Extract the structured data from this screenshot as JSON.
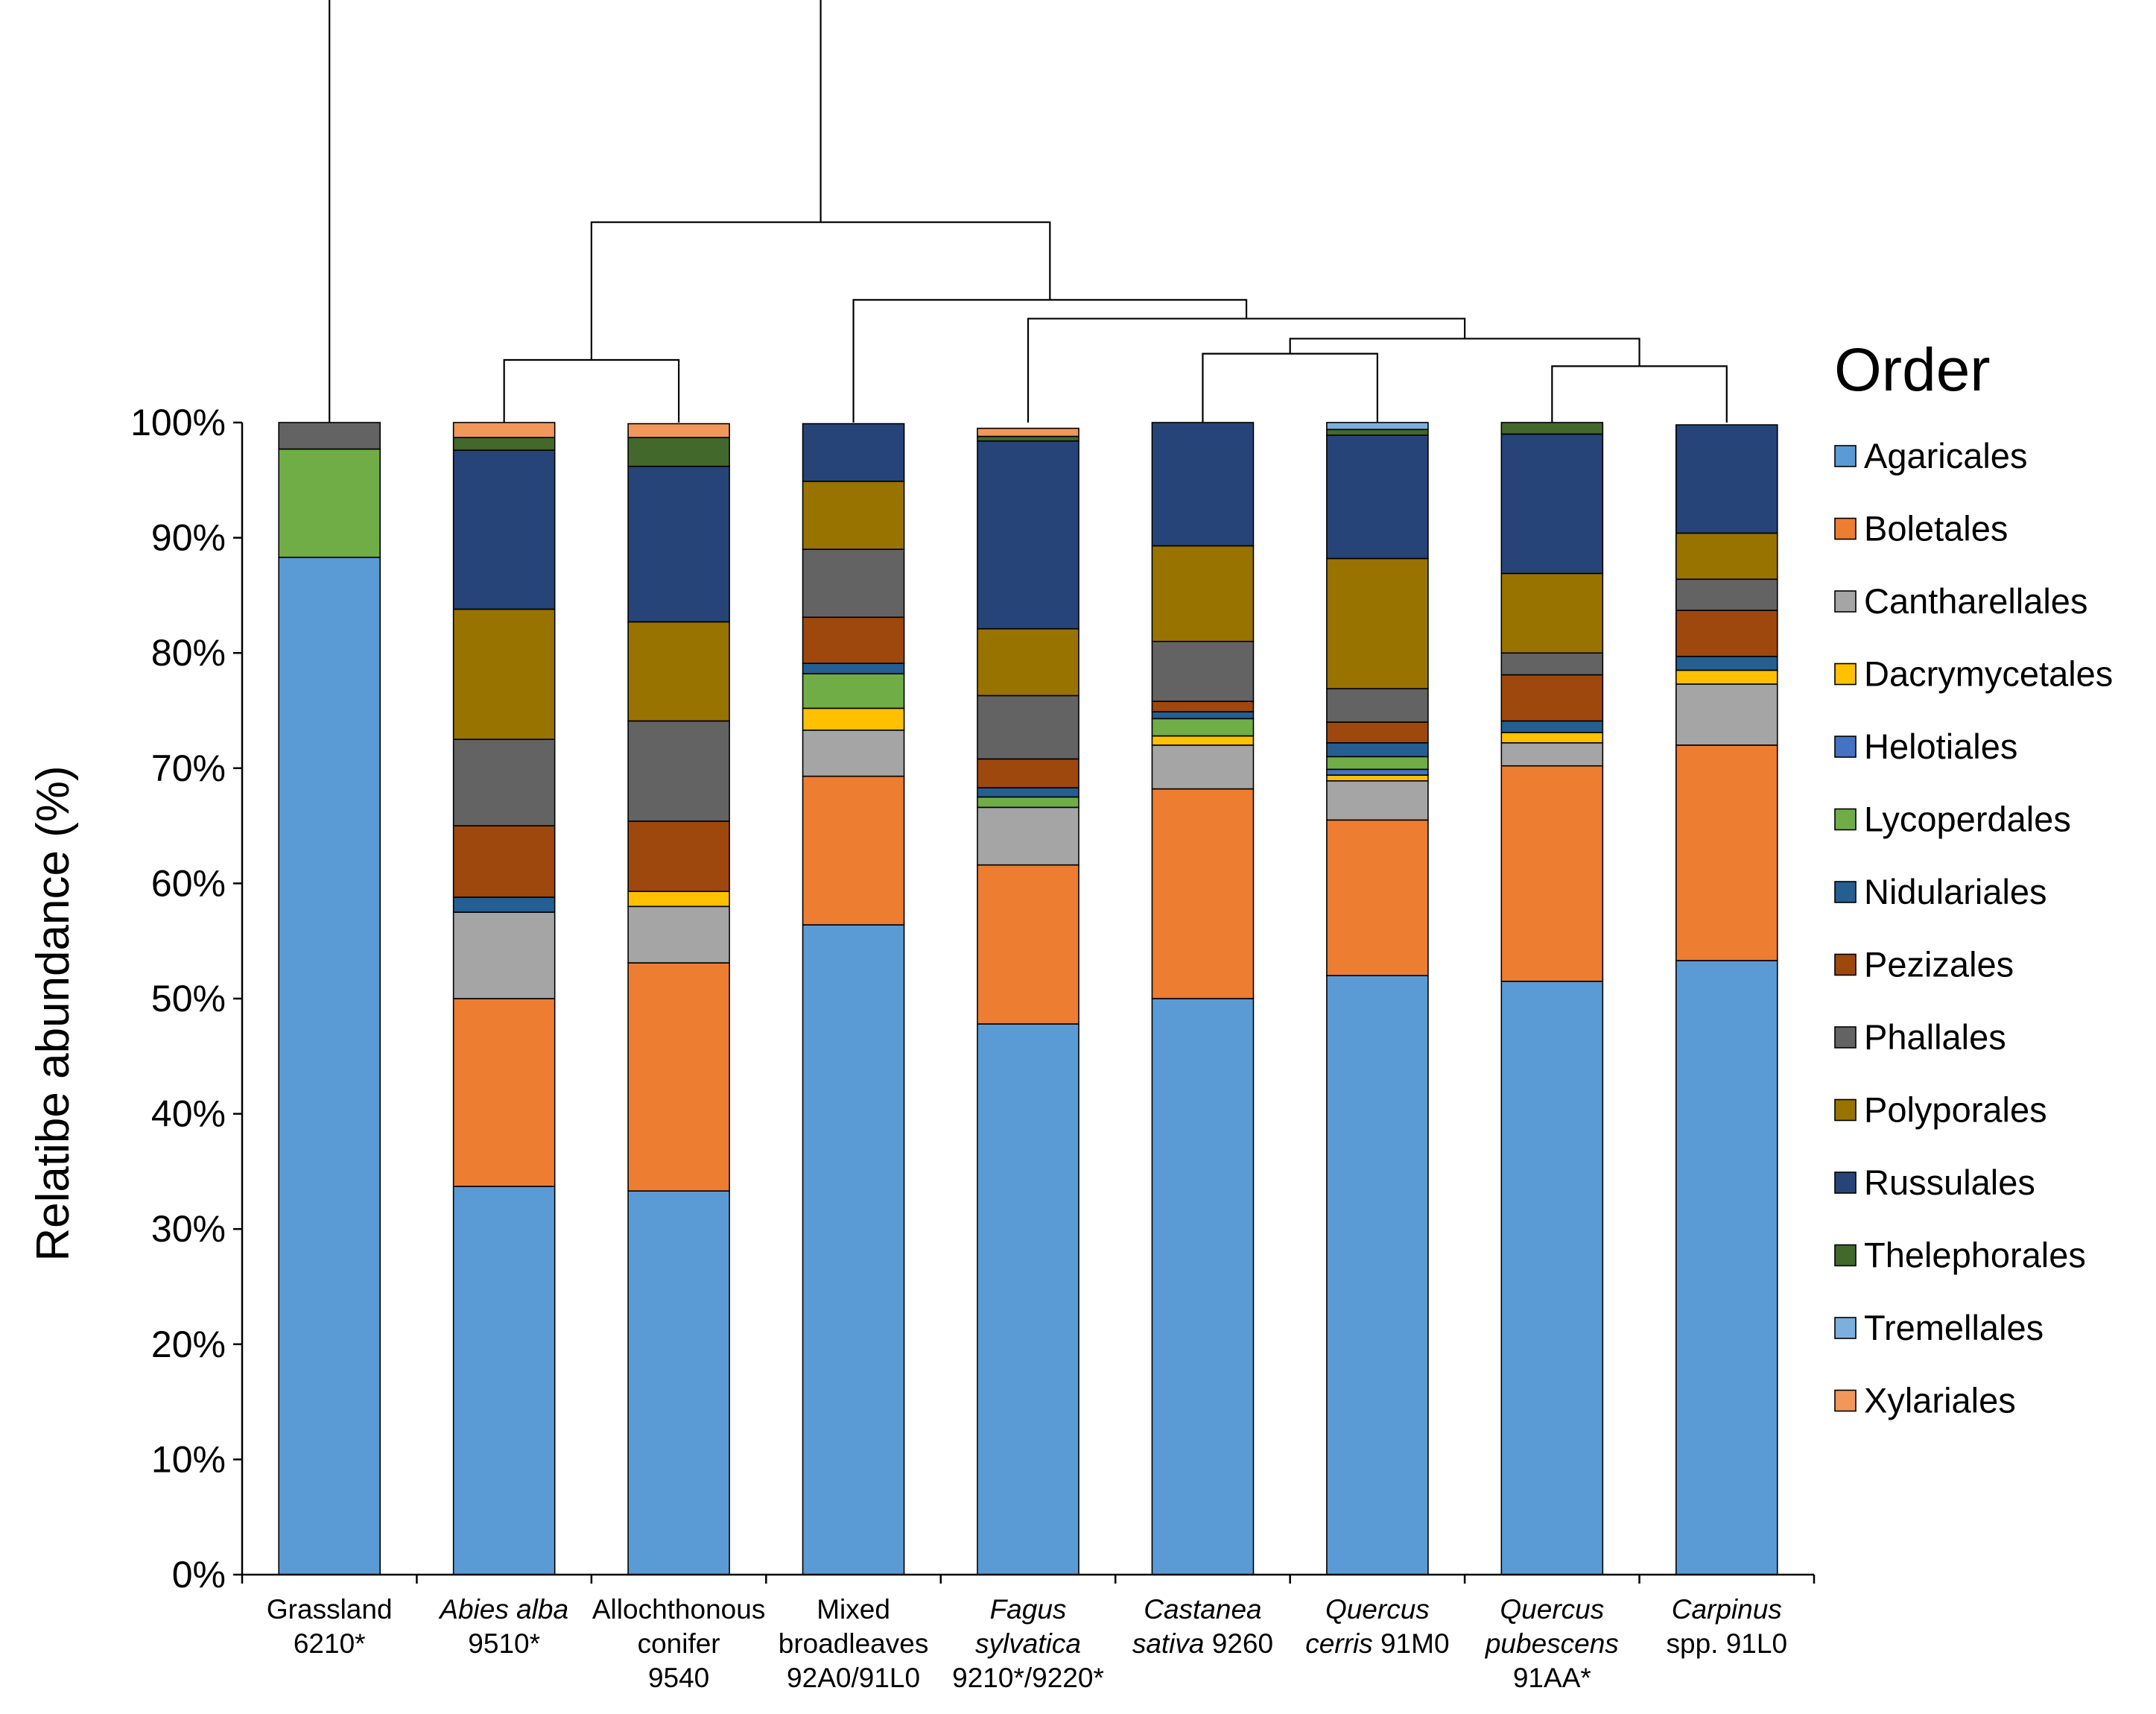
{
  "chart_data": {
    "type": "bar",
    "stacked": true,
    "title": "",
    "xlabel": "",
    "ylabel": "Relatibe abundance (%)",
    "ylim": [
      0,
      100
    ],
    "y_ticks": [
      "0%",
      "10%",
      "20%",
      "30%",
      "40%",
      "50%",
      "60%",
      "70%",
      "80%",
      "90%",
      "100%"
    ],
    "legend_title": "Order",
    "legend_position": "right",
    "categories": [
      {
        "lines": [
          [
            {
              "t": "Grassland",
              "i": false
            }
          ],
          [
            {
              "t": "6210*",
              "i": false
            }
          ]
        ]
      },
      {
        "lines": [
          [
            {
              "t": "Abies alba",
              "i": true
            }
          ],
          [
            {
              "t": "9510*",
              "i": false
            }
          ]
        ]
      },
      {
        "lines": [
          [
            {
              "t": "Allochthonous",
              "i": false
            }
          ],
          [
            {
              "t": "conifer",
              "i": false
            }
          ],
          [
            {
              "t": "9540",
              "i": false
            }
          ]
        ]
      },
      {
        "lines": [
          [
            {
              "t": "Mixed",
              "i": false
            }
          ],
          [
            {
              "t": "broadleaves",
              "i": false
            }
          ],
          [
            {
              "t": "92A0/91L0",
              "i": false
            }
          ]
        ]
      },
      {
        "lines": [
          [
            {
              "t": "Fagus",
              "i": true
            }
          ],
          [
            {
              "t": "sylvatica",
              "i": true
            }
          ],
          [
            {
              "t": "9210*/9220*",
              "i": false
            }
          ]
        ]
      },
      {
        "lines": [
          [
            {
              "t": "Castanea",
              "i": true
            }
          ],
          [
            {
              "t": "sativa",
              "i": true
            },
            {
              "t": " 9260",
              "i": false
            }
          ]
        ]
      },
      {
        "lines": [
          [
            {
              "t": "Quercus",
              "i": true
            }
          ],
          [
            {
              "t": "cerris",
              "i": true
            },
            {
              "t": " 91M0",
              "i": false
            }
          ]
        ]
      },
      {
        "lines": [
          [
            {
              "t": "Quercus",
              "i": true
            }
          ],
          [
            {
              "t": "pubescens",
              "i": true
            }
          ],
          [
            {
              "t": "91AA*",
              "i": false
            }
          ]
        ]
      },
      {
        "lines": [
          [
            {
              "t": "Carpinus",
              "i": true
            }
          ],
          [
            {
              "t": "spp. 91L0",
              "i": false
            }
          ]
        ]
      }
    ],
    "series": [
      {
        "name": "Agaricales",
        "color": "#5B9BD5",
        "values": [
          88.3,
          33.7,
          33.3,
          56.4,
          47.8,
          50.0,
          52.0,
          51.5,
          53.3
        ]
      },
      {
        "name": "Boletales",
        "color": "#ED7D31",
        "values": [
          0,
          16.3,
          19.8,
          12.9,
          13.8,
          18.2,
          13.5,
          18.7,
          18.7
        ]
      },
      {
        "name": "Cantharellales",
        "color": "#A5A5A5",
        "values": [
          0,
          7.5,
          4.9,
          4.0,
          5.0,
          3.8,
          3.4,
          2.0,
          5.3
        ]
      },
      {
        "name": "Dacrymycetales",
        "color": "#FFC000",
        "values": [
          0,
          0,
          1.3,
          1.9,
          0,
          0.8,
          0.5,
          0.9,
          1.2
        ]
      },
      {
        "name": "Helotiales",
        "color": "#4472C4",
        "values": [
          0,
          0,
          0,
          0,
          0,
          0,
          0.5,
          0,
          0
        ]
      },
      {
        "name": "Lycoperdales",
        "color": "#70AD47",
        "values": [
          9.4,
          0,
          0,
          3.0,
          0.9,
          1.5,
          1.1,
          0,
          0
        ]
      },
      {
        "name": "Nidulariales",
        "color": "#255E91",
        "values": [
          0,
          1.3,
          0,
          0.9,
          0.8,
          0.6,
          1.2,
          1.0,
          1.2
        ]
      },
      {
        "name": "Pezizales",
        "color": "#9E480E",
        "values": [
          0,
          6.2,
          6.1,
          4.0,
          2.5,
          0.9,
          1.8,
          4.0,
          4.0
        ]
      },
      {
        "name": "Phallales",
        "color": "#636363",
        "values": [
          2.3,
          7.5,
          8.7,
          5.9,
          5.5,
          5.2,
          2.9,
          1.9,
          2.7
        ]
      },
      {
        "name": "Polyporales",
        "color": "#997300",
        "values": [
          0,
          11.3,
          8.6,
          5.9,
          5.8,
          8.3,
          11.3,
          6.9,
          4.0
        ]
      },
      {
        "name": "Russulales",
        "color": "#264478",
        "values": [
          0,
          13.8,
          13.5,
          5.0,
          16.3,
          10.7,
          10.7,
          12.1,
          9.4
        ]
      },
      {
        "name": "Thelephorales",
        "color": "#43682B",
        "values": [
          0,
          1.1,
          2.5,
          0,
          0.4,
          0,
          0.5,
          1.0,
          0
        ]
      },
      {
        "name": "Tremellales",
        "color": "#7CAFDD",
        "values": [
          0,
          0,
          0,
          0,
          0,
          0,
          0.6,
          0,
          0
        ]
      },
      {
        "name": "Xylariales",
        "color": "#F1975A",
        "values": [
          0,
          1.3,
          1.2,
          0,
          0.7,
          0,
          0,
          0,
          0
        ]
      }
    ],
    "dendrogram": {
      "description_of_topology": "nodes reference bar indices (leaves) or earlier merges; height in relative units above plot top",
      "merges": [
        {
          "id": "m1",
          "children": [
            "b1",
            "b2"
          ],
          "height": 0.5
        },
        {
          "id": "m2",
          "children": [
            "b5",
            "b6"
          ],
          "height": 0.55
        },
        {
          "id": "m3",
          "children": [
            "b7",
            "b8"
          ],
          "height": 0.45
        },
        {
          "id": "m4",
          "children": [
            "m2",
            "m3"
          ],
          "height": 0.67
        },
        {
          "id": "m5",
          "children": [
            "b4",
            "m4"
          ],
          "height": 0.83
        },
        {
          "id": "m6",
          "children": [
            "b3",
            "m5"
          ],
          "height": 0.98
        },
        {
          "id": "m7",
          "children": [
            "m1",
            "m6"
          ],
          "height": 1.6
        },
        {
          "id": "m8",
          "children": [
            "b0",
            "m7"
          ],
          "height": 3.5
        }
      ]
    }
  }
}
